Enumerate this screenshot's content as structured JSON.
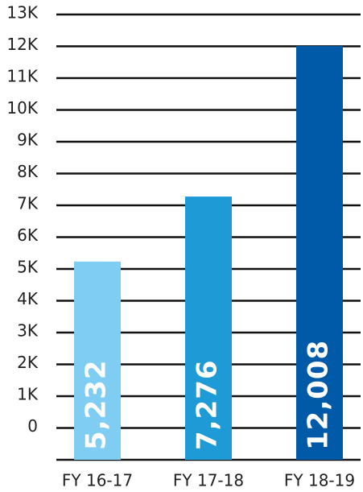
{
  "chart_data": {
    "type": "bar",
    "title": "",
    "xlabel": "",
    "ylabel": "",
    "categories": [
      "FY 16-17",
      "FY 17-18",
      "FY 18-19"
    ],
    "values": [
      5232,
      7276,
      12008
    ],
    "data_labels": [
      "5,232",
      "7,276",
      "12,008"
    ],
    "bar_colors": [
      "#7fcdf2",
      "#1e9ad6",
      "#005aa8"
    ],
    "ylim": [
      -1000,
      13000
    ],
    "y_ticks": [
      {
        "value": 13000,
        "label": "13K"
      },
      {
        "value": 12000,
        "label": "12K"
      },
      {
        "value": 11000,
        "label": "11K"
      },
      {
        "value": 10000,
        "label": "10K"
      },
      {
        "value": 9000,
        "label": "9K"
      },
      {
        "value": 8000,
        "label": "8K"
      },
      {
        "value": 7000,
        "label": "7K"
      },
      {
        "value": 6000,
        "label": "6K"
      },
      {
        "value": 5000,
        "label": "5K"
      },
      {
        "value": 4000,
        "label": "4K"
      },
      {
        "value": 3000,
        "label": "3K"
      },
      {
        "value": 2000,
        "label": "2K"
      },
      {
        "value": 1000,
        "label": "1K"
      },
      {
        "value": 0,
        "label": "0"
      },
      {
        "value": -1000,
        "label": ""
      }
    ],
    "grid": true,
    "legend": "none",
    "gridline_color": "#111111"
  }
}
